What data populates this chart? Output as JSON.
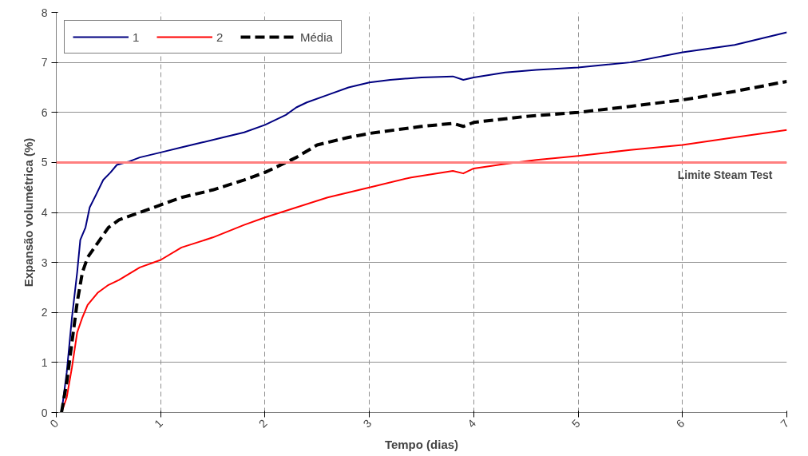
{
  "chart_data": {
    "type": "line",
    "xlabel": "Tempo (dias)",
    "ylabel": "Expansão volumétrica (%)",
    "xlim": [
      0,
      7
    ],
    "ylim": [
      0,
      8
    ],
    "xticks": [
      0,
      1,
      2,
      3,
      4,
      5,
      6,
      7
    ],
    "yticks": [
      0,
      1,
      2,
      3,
      4,
      5,
      6,
      7,
      8
    ],
    "grid": true,
    "legend": "top left",
    "marker": "none",
    "ref_lines": [
      {
        "axis": "y",
        "value": 5,
        "label": "Limite Steam Test",
        "color": "#ff7f7f",
        "line_style": "solid"
      }
    ],
    "series": [
      {
        "name": "1",
        "color": "#000080",
        "line_style": "solid",
        "x": [
          0.05,
          0.1,
          0.15,
          0.2,
          0.23,
          0.28,
          0.32,
          0.38,
          0.45,
          0.52,
          0.58,
          0.7,
          0.8,
          1.0,
          1.2,
          1.4,
          1.6,
          1.8,
          2.0,
          2.1,
          2.2,
          2.3,
          2.4,
          2.6,
          2.8,
          3.0,
          3.2,
          3.5,
          3.8,
          3.9,
          4.0,
          4.3,
          4.6,
          5.0,
          5.5,
          6.0,
          6.5,
          7.0
        ],
        "values": [
          0,
          0.8,
          1.9,
          2.8,
          3.45,
          3.7,
          4.1,
          4.35,
          4.65,
          4.8,
          4.95,
          5.02,
          5.1,
          5.2,
          5.3,
          5.4,
          5.5,
          5.6,
          5.75,
          5.85,
          5.95,
          6.1,
          6.2,
          6.35,
          6.5,
          6.6,
          6.65,
          6.7,
          6.72,
          6.65,
          6.7,
          6.8,
          6.85,
          6.9,
          7.0,
          7.2,
          7.35,
          7.6
        ]
      },
      {
        "name": "2",
        "color": "#ff0000",
        "line_style": "solid",
        "x": [
          0.05,
          0.1,
          0.15,
          0.2,
          0.25,
          0.3,
          0.4,
          0.5,
          0.6,
          0.8,
          1.0,
          1.2,
          1.5,
          1.8,
          2.0,
          2.3,
          2.6,
          3.0,
          3.4,
          3.8,
          3.9,
          4.0,
          4.3,
          4.6,
          5.0,
          5.5,
          6.0,
          6.5,
          7.0
        ],
        "values": [
          0,
          0.3,
          0.9,
          1.6,
          1.9,
          2.15,
          2.4,
          2.55,
          2.65,
          2.9,
          3.05,
          3.3,
          3.5,
          3.75,
          3.9,
          4.1,
          4.3,
          4.5,
          4.7,
          4.83,
          4.78,
          4.88,
          4.97,
          5.05,
          5.13,
          5.25,
          5.35,
          5.5,
          5.65
        ]
      },
      {
        "name": "Média",
        "color": "#000000",
        "line_style": "dashed",
        "x": [
          0.05,
          0.1,
          0.15,
          0.2,
          0.25,
          0.3,
          0.4,
          0.5,
          0.6,
          0.8,
          1.0,
          1.2,
          1.5,
          1.8,
          2.0,
          2.2,
          2.3,
          2.5,
          2.8,
          3.0,
          3.5,
          3.8,
          3.9,
          4.0,
          4.5,
          5.0,
          5.5,
          6.0,
          6.5,
          7.0
        ],
        "values": [
          0,
          0.6,
          1.4,
          2.2,
          2.8,
          3.1,
          3.4,
          3.7,
          3.85,
          4.0,
          4.15,
          4.3,
          4.45,
          4.65,
          4.8,
          5.0,
          5.1,
          5.35,
          5.5,
          5.58,
          5.72,
          5.78,
          5.72,
          5.8,
          5.92,
          6.0,
          6.12,
          6.25,
          6.42,
          6.62
        ]
      }
    ]
  }
}
